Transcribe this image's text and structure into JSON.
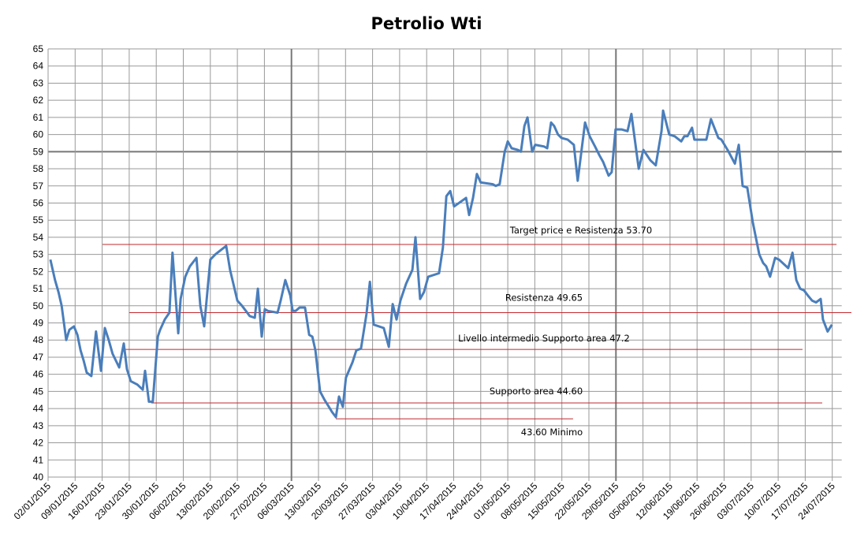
{
  "chart_data": {
    "type": "line",
    "title": "Petrolio Wti",
    "xlabel": "",
    "ylabel": "",
    "ylim": [
      40,
      65
    ],
    "y_ticks": [
      "40",
      "41",
      "42",
      "43",
      "44",
      "45",
      "46",
      "47",
      "48",
      "49",
      "50",
      "51",
      "52",
      "53",
      "54",
      "55",
      "56",
      "57",
      "58",
      "59",
      "60",
      "61",
      "62",
      "63",
      "64",
      "65"
    ],
    "x_unit": "days since 02/01/2015",
    "x_ticks": [
      "02/01/2015",
      "09/01/2015",
      "16/01/2015",
      "23/01/2015",
      "30/01/2015",
      "06/02/2015",
      "13/02/2015",
      "20/02/2015",
      "27/02/2015",
      "06/03/2015",
      "13/03/2015",
      "20/03/2015",
      "27/03/2015",
      "03/04/2015",
      "10/04/2015",
      "17/04/2015",
      "24/04/2015",
      "01/05/2015",
      "08/05/2015",
      "15/05/2015",
      "22/05/2015",
      "29/05/2015",
      "05/06/2015",
      "12/06/2015",
      "19/06/2015",
      "26/06/2015",
      "03/07/2015",
      "10/07/2015",
      "17/07/2015",
      "24/07/2015"
    ],
    "grid": true,
    "series_color": "#4a7ebb",
    "line_color": "#c0282d",
    "series": [
      {
        "name": "Petrolio Wti",
        "points": [
          [
            0.6,
            52.7
          ],
          [
            1.8,
            51.5
          ],
          [
            2.7,
            50.8
          ],
          [
            3.5,
            50.0
          ],
          [
            4.7,
            48.0
          ],
          [
            5.5,
            48.6
          ],
          [
            6.7,
            48.8
          ],
          [
            7.6,
            48.3
          ],
          [
            8.4,
            47.4
          ],
          [
            9.2,
            46.8
          ],
          [
            10.0,
            46.1
          ],
          [
            11.2,
            45.9
          ],
          [
            12.4,
            48.5
          ],
          [
            12.9,
            47.6
          ],
          [
            13.7,
            46.2
          ],
          [
            14.7,
            48.7
          ],
          [
            15.7,
            48.0
          ],
          [
            16.7,
            47.2
          ],
          [
            18.4,
            46.4
          ],
          [
            19.6,
            47.8
          ],
          [
            20.4,
            46.3
          ],
          [
            21.4,
            45.6
          ],
          [
            23.1,
            45.4
          ],
          [
            24.5,
            45.1
          ],
          [
            25.1,
            46.2
          ],
          [
            26.1,
            44.4
          ],
          [
            27.1,
            44.4
          ],
          [
            28.4,
            48.2
          ],
          [
            29.0,
            48.6
          ],
          [
            30.2,
            49.2
          ],
          [
            31.4,
            49.6
          ],
          [
            32.2,
            53.1
          ],
          [
            33.7,
            48.4
          ],
          [
            34.3,
            50.4
          ],
          [
            35.5,
            51.7
          ],
          [
            36.7,
            52.3
          ],
          [
            38.4,
            52.8
          ],
          [
            39.4,
            50.0
          ],
          [
            40.4,
            48.8
          ],
          [
            42.0,
            52.7
          ],
          [
            43.3,
            53.0
          ],
          [
            46.1,
            53.5
          ],
          [
            47.1,
            52.1
          ],
          [
            49.0,
            50.3
          ],
          [
            50.2,
            50.0
          ],
          [
            52.2,
            49.4
          ],
          [
            53.5,
            49.3
          ],
          [
            54.3,
            51.0
          ],
          [
            55.3,
            48.2
          ],
          [
            56.1,
            49.8
          ],
          [
            56.9,
            49.7
          ],
          [
            59.4,
            49.6
          ],
          [
            60.2,
            50.3
          ],
          [
            61.4,
            51.5
          ],
          [
            62.7,
            50.6
          ],
          [
            63.3,
            49.7
          ],
          [
            64.1,
            49.7
          ],
          [
            65.1,
            49.9
          ],
          [
            66.5,
            49.9
          ],
          [
            67.6,
            48.3
          ],
          [
            68.4,
            48.2
          ],
          [
            69.2,
            47.4
          ],
          [
            70.4,
            45.0
          ],
          [
            71.6,
            44.5
          ],
          [
            72.7,
            44.1
          ],
          [
            73.5,
            43.8
          ],
          [
            74.5,
            43.5
          ],
          [
            75.3,
            44.7
          ],
          [
            76.3,
            44.1
          ],
          [
            77.1,
            45.8
          ],
          [
            78.8,
            46.7
          ],
          [
            79.8,
            47.4
          ],
          [
            81.0,
            47.5
          ],
          [
            82.4,
            49.5
          ],
          [
            83.3,
            51.4
          ],
          [
            84.3,
            48.9
          ],
          [
            86.9,
            48.7
          ],
          [
            88.2,
            47.6
          ],
          [
            89.2,
            50.1
          ],
          [
            90.2,
            49.2
          ],
          [
            91.2,
            50.3
          ],
          [
            92.7,
            51.3
          ],
          [
            94.3,
            52.1
          ],
          [
            95.1,
            54.0
          ],
          [
            96.3,
            50.4
          ],
          [
            97.3,
            50.8
          ],
          [
            98.4,
            51.7
          ],
          [
            101.2,
            51.9
          ],
          [
            102.2,
            53.4
          ],
          [
            103.1,
            56.4
          ],
          [
            104.1,
            56.7
          ],
          [
            105.1,
            55.8
          ],
          [
            108.2,
            56.3
          ],
          [
            109.0,
            55.3
          ],
          [
            110.0,
            56.3
          ],
          [
            111.0,
            57.7
          ],
          [
            112.0,
            57.2
          ],
          [
            115.1,
            57.1
          ],
          [
            115.9,
            57.0
          ],
          [
            116.9,
            57.1
          ],
          [
            118.2,
            59.0
          ],
          [
            119.0,
            59.6
          ],
          [
            120.0,
            59.2
          ],
          [
            121.6,
            59.1
          ],
          [
            122.4,
            59.0
          ],
          [
            123.3,
            60.5
          ],
          [
            124.1,
            61.0
          ],
          [
            125.3,
            59.0
          ],
          [
            126.1,
            59.4
          ],
          [
            128.4,
            59.3
          ],
          [
            129.2,
            59.2
          ],
          [
            130.2,
            60.7
          ],
          [
            131.0,
            60.5
          ],
          [
            132.0,
            60.0
          ],
          [
            132.9,
            59.8
          ],
          [
            134.5,
            59.7
          ],
          [
            136.1,
            59.4
          ],
          [
            137.1,
            57.3
          ],
          [
            139.0,
            60.7
          ],
          [
            140.2,
            59.9
          ],
          [
            141.6,
            59.3
          ],
          [
            142.7,
            58.8
          ],
          [
            143.7,
            58.4
          ],
          [
            145.1,
            57.6
          ],
          [
            145.9,
            57.8
          ],
          [
            146.9,
            60.3
          ],
          [
            148.4,
            60.3
          ],
          [
            150.0,
            60.2
          ],
          [
            151.0,
            61.2
          ],
          [
            152.9,
            58.0
          ],
          [
            154.1,
            59.1
          ],
          [
            155.9,
            58.5
          ],
          [
            157.3,
            58.2
          ],
          [
            158.8,
            60.2
          ],
          [
            159.2,
            61.4
          ],
          [
            160.8,
            60.0
          ],
          [
            162.2,
            59.9
          ],
          [
            163.9,
            59.6
          ],
          [
            164.7,
            59.9
          ],
          [
            165.5,
            59.9
          ],
          [
            166.7,
            60.4
          ],
          [
            167.3,
            59.7
          ],
          [
            170.4,
            59.7
          ],
          [
            171.6,
            60.9
          ],
          [
            173.5,
            59.8
          ],
          [
            174.3,
            59.7
          ],
          [
            175.9,
            59.1
          ],
          [
            177.8,
            58.3
          ],
          [
            178.8,
            59.4
          ],
          [
            179.8,
            57.0
          ],
          [
            181.0,
            56.9
          ],
          [
            182.4,
            54.9
          ],
          [
            184.1,
            53.0
          ],
          [
            185.1,
            52.5
          ],
          [
            185.9,
            52.3
          ],
          [
            186.9,
            51.7
          ],
          [
            188.2,
            52.8
          ],
          [
            189.2,
            52.7
          ],
          [
            191.6,
            52.2
          ],
          [
            192.7,
            53.1
          ],
          [
            193.7,
            51.5
          ],
          [
            194.7,
            51.0
          ],
          [
            195.7,
            50.9
          ],
          [
            196.7,
            50.6
          ],
          [
            197.8,
            50.3
          ],
          [
            198.8,
            50.2
          ],
          [
            200.0,
            50.4
          ],
          [
            200.6,
            49.2
          ],
          [
            201.8,
            48.5
          ],
          [
            202.9,
            48.9
          ]
        ]
      }
    ],
    "reference_lines": [
      {
        "label": "Target price e Resistenza 53.70",
        "level": 53.58,
        "from_day": 14.1,
        "to_day": 204.1
      },
      {
        "label": "Resistenza 49.65",
        "level": 49.6,
        "from_day": 21.0,
        "to_day": 208
      },
      {
        "label": "Livello intermedio Supporto area 47.2",
        "level": 47.45,
        "from_day": 19.8,
        "to_day": 195.3
      },
      {
        "label": "Supporto area 44.60",
        "level": 44.33,
        "from_day": 26.7,
        "to_day": 200.4
      },
      {
        "label": "43.60 Minimo",
        "level": 43.4,
        "from_day": 74.5,
        "to_day": 135.9
      }
    ],
    "emphasized_gridlines": {
      "y": [
        59
      ],
      "x_ticks": [
        "06/03/2015",
        "29/05/2015"
      ]
    }
  }
}
